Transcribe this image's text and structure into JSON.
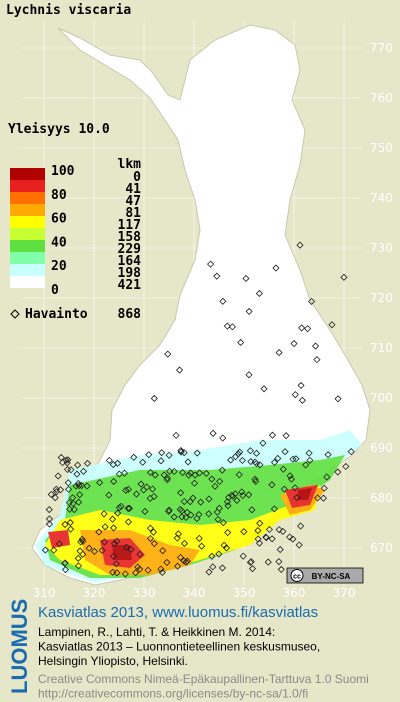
{
  "title": "Lychnis viscaria",
  "frequency": "Yleisyys  10.0",
  "legend": {
    "scale_labels": [
      100,
      80,
      60,
      40,
      20,
      0
    ],
    "colors": [
      "#b00000",
      "#e82020",
      "#ff7000",
      "#ffaa00",
      "#ffff00",
      "#c8ff30",
      "#5ee040",
      "#80ffa8",
      "#c8ffff",
      "#ffffff"
    ],
    "count_header": "lkm",
    "counts": [
      0,
      41,
      47,
      81,
      117,
      158,
      229,
      164,
      198,
      421
    ],
    "observations_label": "Havainto",
    "observations": 868
  },
  "map": {
    "yticks": [
      770,
      760,
      750,
      740,
      730,
      720,
      710,
      700,
      690,
      680,
      670
    ],
    "xticks": [
      310,
      320,
      330,
      340,
      350,
      360,
      370
    ]
  },
  "license_badge": {
    "icon": "cc",
    "text": "BY-NC-SA"
  },
  "footer": {
    "logo": "LUOMUS",
    "heading": "Kasviatlas 2013, www.luomus.fi/kasviatlas",
    "citation": [
      "Lampinen, R., Lahti, T. & Heikkinen M. 2014:",
      "Kasviatlas 2013 – Luonnontieteellinen keskusmuseo,",
      "Helsingin Yliopisto, Helsinki."
    ],
    "license": [
      "Creative Commons Nimeä-Epäkaupallinen-Tarttuva 1.0 Suomi",
      "http://creativecommons.org/licenses/by-nc-sa/1.0/fi"
    ]
  }
}
